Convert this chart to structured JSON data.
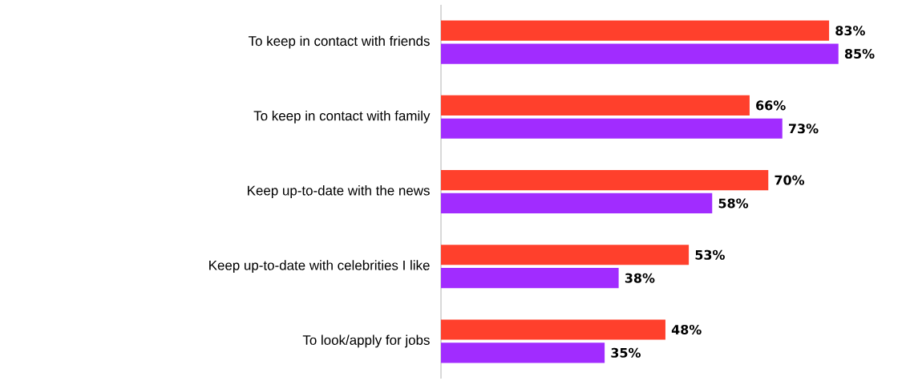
{
  "chart_data": {
    "type": "bar",
    "orientation": "horizontal",
    "categories": [
      "To keep in contact with friends",
      "To keep in contact with family",
      "Keep up-to-date with the news",
      "Keep up-to-date with celebrities I like",
      "To look/apply for jobs"
    ],
    "series": [
      {
        "color": "#ff402c",
        "values": [
          83,
          66,
          70,
          53,
          48
        ],
        "value_labels": [
          "83%",
          "66%",
          "70%",
          "53%",
          "48%"
        ]
      },
      {
        "color": "#a12cff",
        "values": [
          85,
          73,
          58,
          38,
          35
        ],
        "value_labels": [
          "85%",
          "73%",
          "58%",
          "38%",
          "35%"
        ]
      }
    ],
    "tick_labels": "y"
  }
}
